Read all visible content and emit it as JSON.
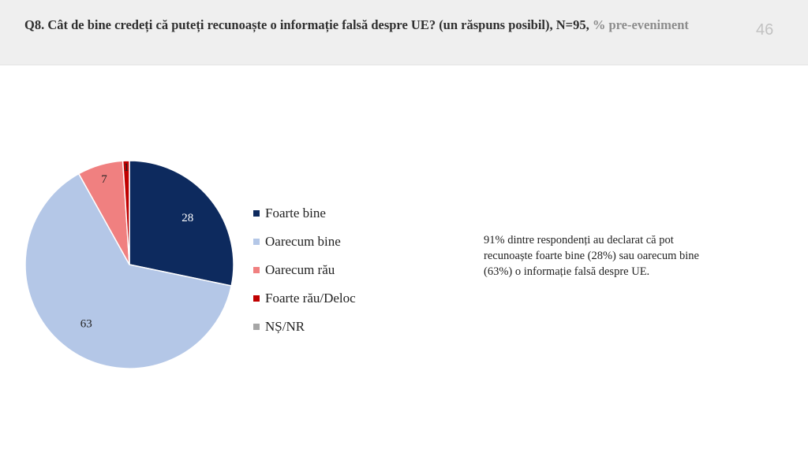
{
  "header": {
    "title": "Q8. Cât de bine credeți că puteți recunoaște o informație falsă despre UE? (un răspuns posibil), N=95,",
    "title_accent": "% pre-eveniment",
    "page_number": "46"
  },
  "chart_data": {
    "type": "pie",
    "title": "",
    "categories": [
      "Foarte bine",
      "Oarecum bine",
      "Oarecum rău",
      "Foarte rău/Deloc",
      "NȘ/NR"
    ],
    "values": [
      28,
      63,
      7,
      1,
      0
    ],
    "data_labels": [
      "28",
      "63",
      "7",
      "1",
      ""
    ],
    "colors": [
      "#0d2a5e",
      "#b4c7e7",
      "#f08080",
      "#c00000",
      "#a6a6a6"
    ],
    "start_angle_deg": 0,
    "direction": "clockwise",
    "legend_position": "right"
  },
  "note": {
    "text": "91% dintre respondenți au declarat că pot recunoaște foarte bine (28%) sau oarecum bine (63%) o informație falsă despre UE."
  }
}
